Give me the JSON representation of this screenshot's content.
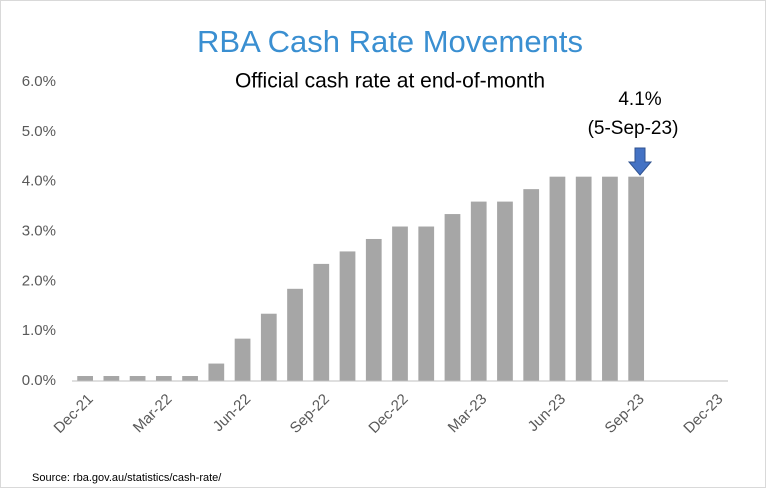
{
  "chart_data": {
    "type": "bar",
    "title": "RBA Cash Rate Movements",
    "subtitle": "Official cash rate at end-of-month",
    "annotations": [
      "4.1%",
      "(5-Sep-23)"
    ],
    "source": "Source: rba.gov.au/statistics/cash-rate/",
    "categories": [
      "Dec-21",
      null,
      null,
      "Mar-22",
      null,
      null,
      "Jun-22",
      null,
      null,
      "Sep-22",
      null,
      null,
      "Dec-22",
      null,
      null,
      "Mar-23",
      null,
      null,
      "Jun-23",
      null,
      null,
      "Sep-23",
      null,
      null,
      "Dec-23"
    ],
    "values": [
      0.1,
      0.1,
      0.1,
      0.1,
      0.1,
      0.35,
      0.85,
      1.35,
      1.85,
      2.35,
      2.6,
      2.85,
      3.1,
      3.1,
      3.35,
      3.6,
      3.6,
      3.85,
      4.1,
      4.1,
      4.1,
      4.1,
      null,
      null,
      null
    ],
    "color": "#a6a6a6",
    "ylim": [
      0,
      6
    ],
    "yticks": [
      {
        "value": 0,
        "label": "0.0%"
      },
      {
        "value": 1,
        "label": "1.0%"
      },
      {
        "value": 2,
        "label": "2.0%"
      },
      {
        "value": 3,
        "label": "3.0%"
      },
      {
        "value": 4,
        "label": "4.0%"
      },
      {
        "value": 5,
        "label": "5.0%"
      },
      {
        "value": 6,
        "label": "6.0%"
      }
    ],
    "grid": false
  }
}
